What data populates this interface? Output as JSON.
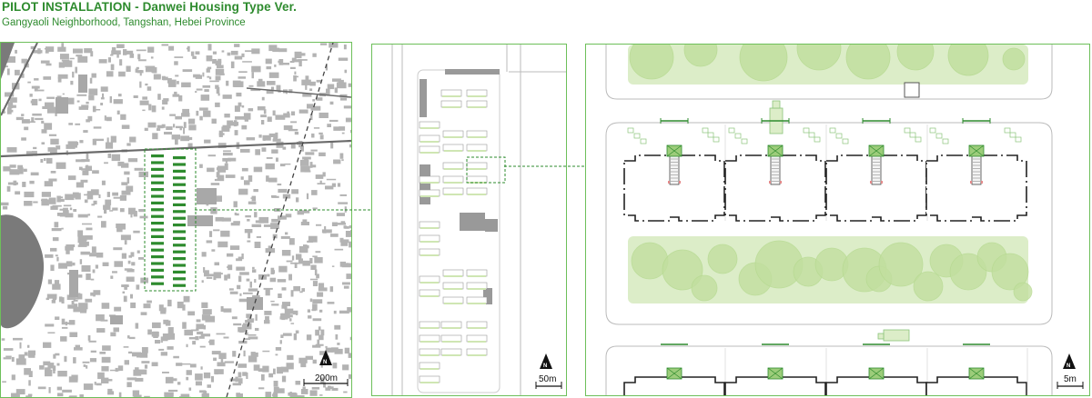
{
  "header": {
    "title": "PILOT INSTALLATION - Danwei Housing Type Ver.",
    "subtitle": "Gangyaoli Neighborhood, Tangshan, Hebei Province"
  },
  "panels": {
    "city": {
      "scale_label": "200m",
      "north_label": "N"
    },
    "district": {
      "scale_label": "50m",
      "north_label": "N"
    },
    "detail": {
      "scale_label": "5m",
      "north_label": "N"
    }
  },
  "colors": {
    "accent": "#2e8b2e",
    "frame": "#6dbf5a",
    "building": "#b3b3b3",
    "green_space": "#cfe6b3",
    "tree": "#c2df9f"
  }
}
